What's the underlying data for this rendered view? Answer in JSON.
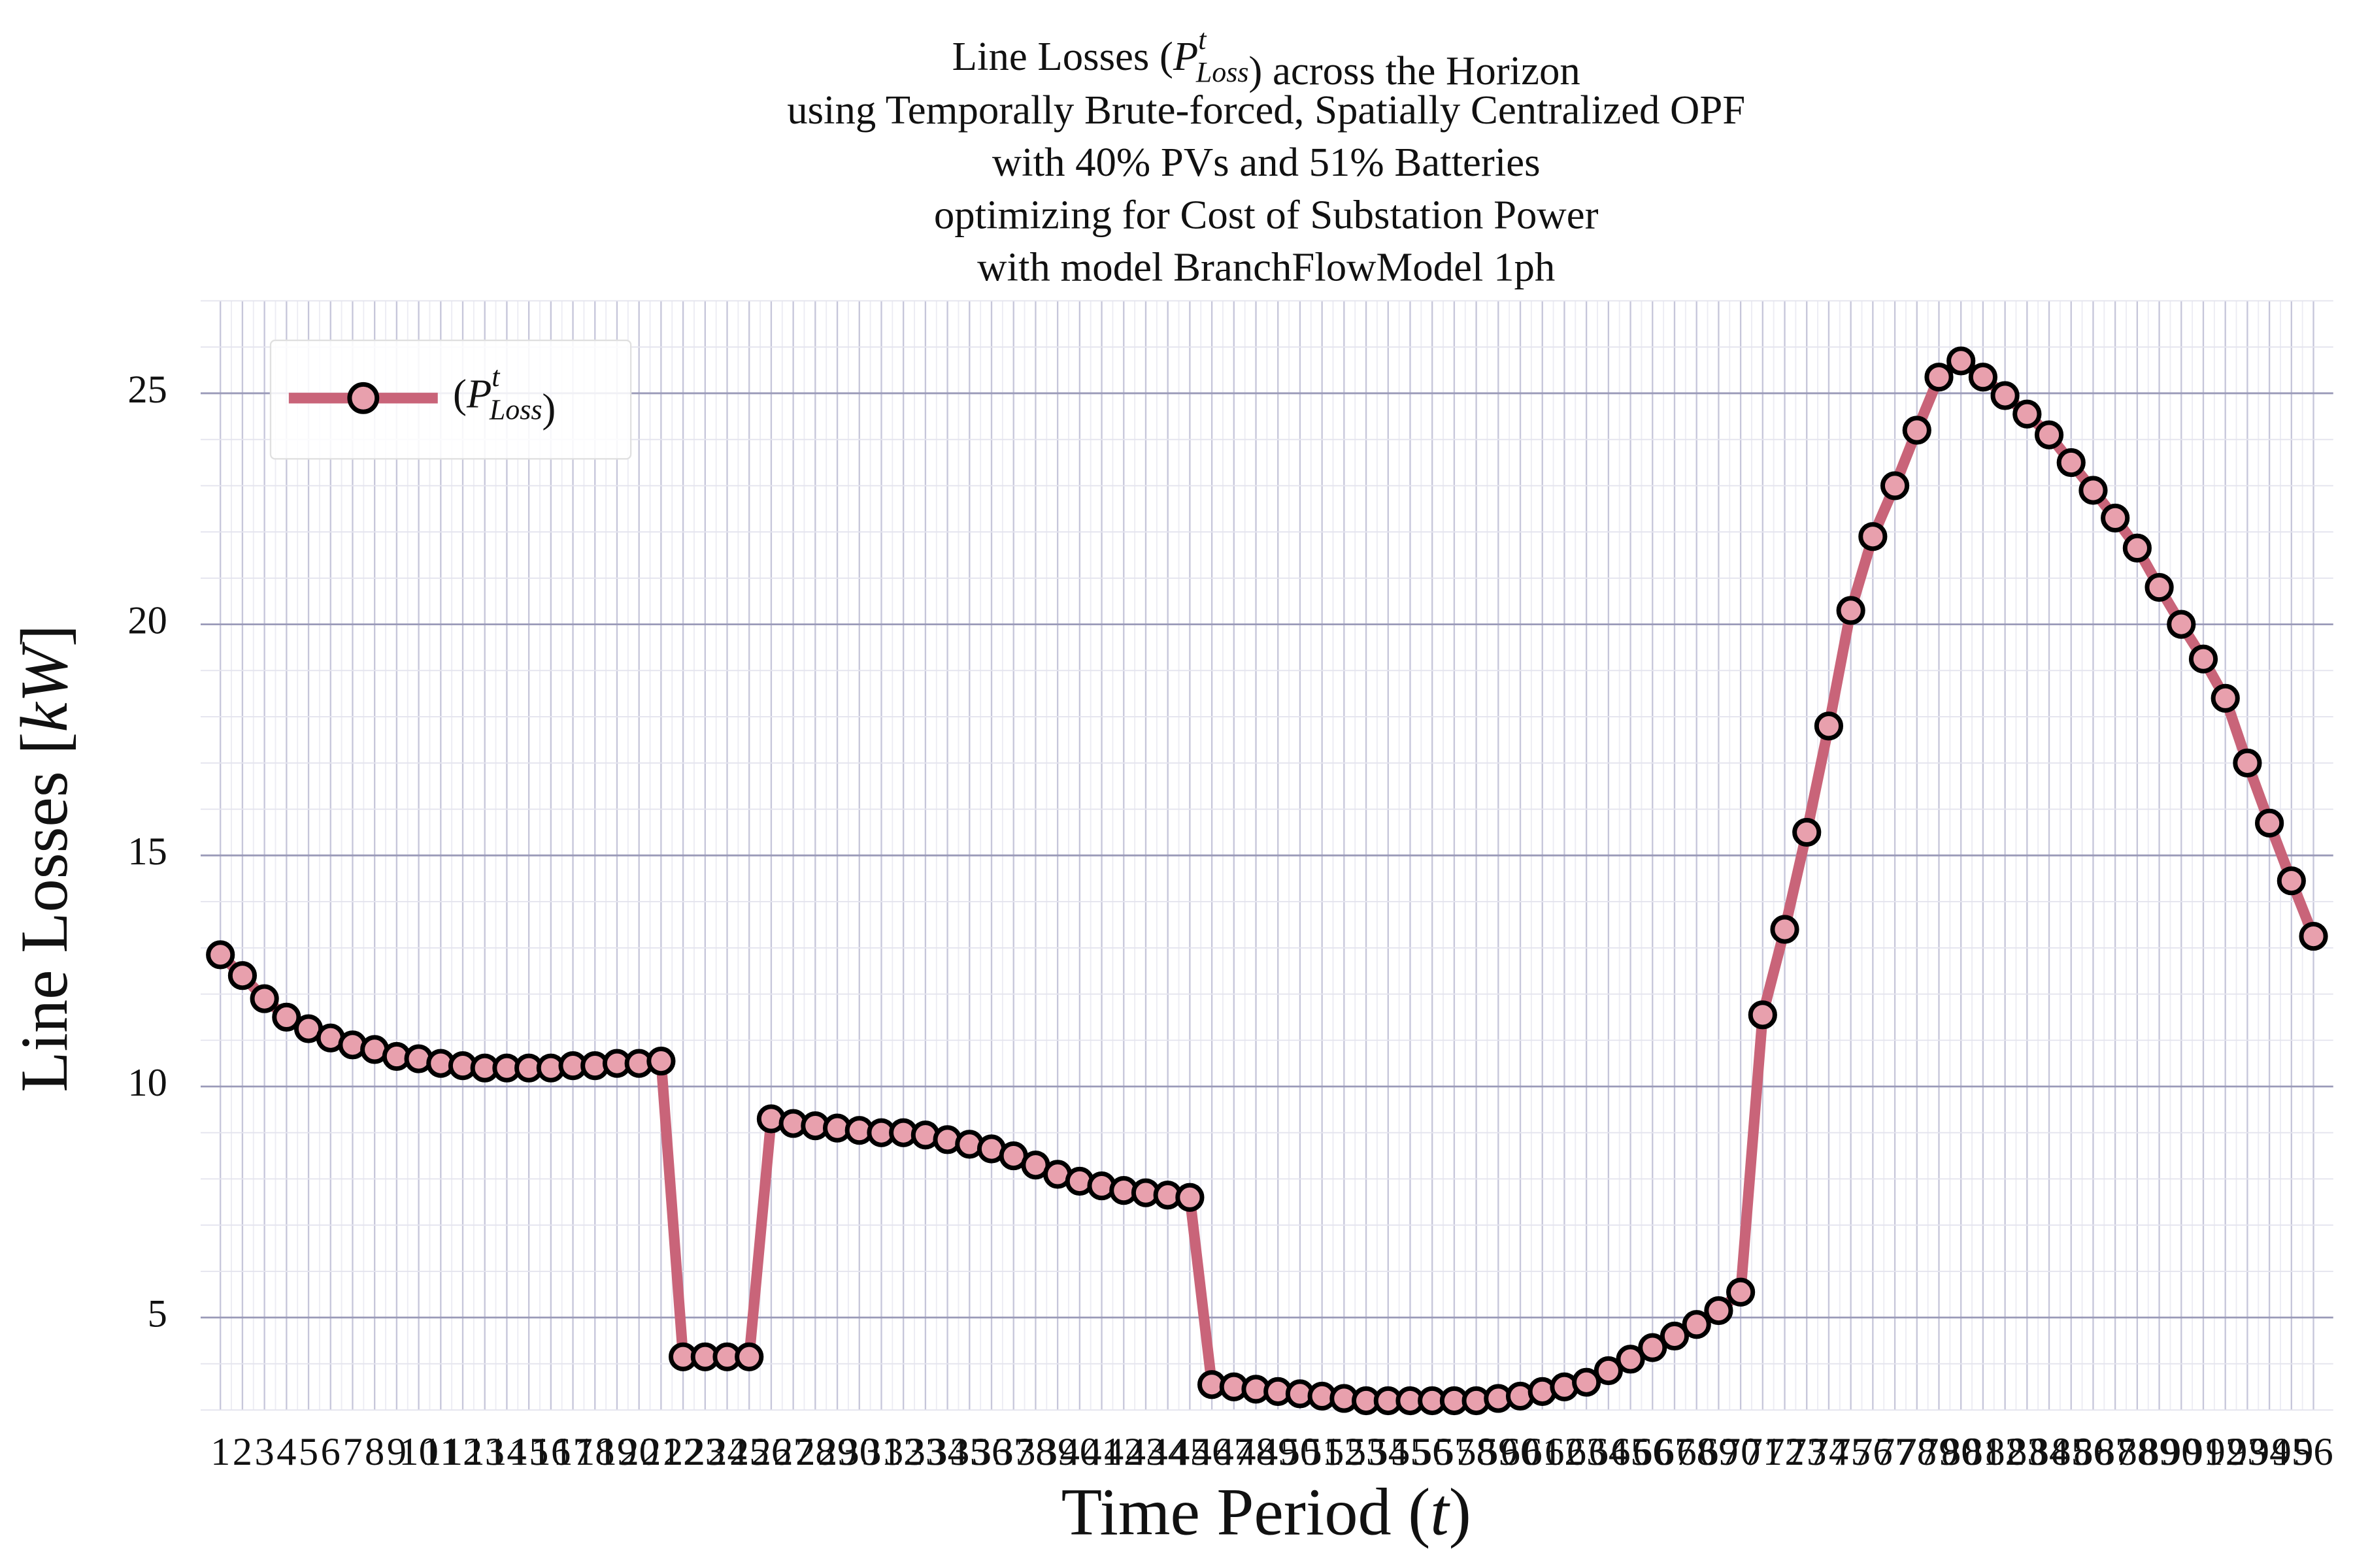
{
  "chart_data": {
    "type": "line",
    "title": {
      "first": {
        "pre": "Line Losses (",
        "post": ") across the Horizon"
      },
      "rest": [
        "using Temporally Brute-forced, Spatially Centralized OPF",
        "with 40% PVs and 51% Batteries",
        "optimizing for Cost of Substation Power",
        "with model BranchFlowModel 1ph"
      ]
    },
    "symbol": {
      "base": "P",
      "sup": "t",
      "sub": "Loss"
    },
    "legend_label": {
      "pre": "(",
      "post": ")"
    },
    "legend_position": "upper left",
    "xlabel": {
      "pre": "Time Period (",
      "var": "t",
      "post": ")"
    },
    "ylabel": {
      "pre": "Line Losses [",
      "var": "kW",
      "post": "]"
    },
    "categories": [
      "1",
      "2",
      "3",
      "4",
      "5",
      "6",
      "7",
      "8",
      "9",
      "10",
      "11",
      "12",
      "13",
      "14",
      "15",
      "16",
      "17",
      "18",
      "19",
      "20",
      "21",
      "22",
      "23",
      "24",
      "25",
      "26",
      "27",
      "28",
      "29",
      "30",
      "31",
      "32",
      "33",
      "34",
      "35",
      "36",
      "37",
      "38",
      "39",
      "40",
      "41",
      "42",
      "43",
      "44",
      "45",
      "46",
      "47",
      "48",
      "49",
      "50",
      "51",
      "52",
      "53",
      "54",
      "55",
      "56",
      "57",
      "58",
      "59",
      "60",
      "61",
      "62",
      "63",
      "64",
      "65",
      "66",
      "67",
      "68",
      "69",
      "70",
      "71",
      "72",
      "73",
      "74",
      "75",
      "76",
      "77",
      "78",
      "79",
      "80",
      "81",
      "82",
      "83",
      "84",
      "85",
      "86",
      "87",
      "88",
      "89",
      "90",
      "91",
      "92",
      "93",
      "94",
      "95",
      "96"
    ],
    "series": [
      {
        "color": "#c96479",
        "marker_color": "#e8a0ad",
        "values": [
          12.85,
          12.4,
          11.9,
          11.5,
          11.25,
          11.05,
          10.9,
          10.8,
          10.65,
          10.6,
          10.5,
          10.45,
          10.4,
          10.4,
          10.4,
          10.4,
          10.45,
          10.45,
          10.5,
          10.5,
          10.55,
          4.15,
          4.15,
          4.15,
          4.15,
          9.3,
          9.2,
          9.15,
          9.1,
          9.05,
          9.0,
          9.0,
          8.95,
          8.85,
          8.75,
          8.65,
          8.5,
          8.3,
          8.1,
          7.95,
          7.85,
          7.75,
          7.7,
          7.65,
          7.6,
          3.55,
          3.5,
          3.45,
          3.4,
          3.35,
          3.3,
          3.25,
          3.2,
          3.2,
          3.2,
          3.2,
          3.2,
          3.2,
          3.25,
          3.3,
          3.4,
          3.5,
          3.6,
          3.85,
          4.1,
          4.35,
          4.6,
          4.85,
          5.15,
          5.55,
          11.55,
          13.4,
          15.5,
          17.8,
          20.3,
          21.9,
          23.0,
          24.2,
          25.35,
          25.7,
          25.35,
          24.95,
          24.55,
          24.1,
          23.5,
          22.9,
          22.3,
          21.65,
          20.8,
          20.0,
          19.25,
          18.4,
          17.0,
          15.7,
          14.45,
          13.25
        ]
      }
    ],
    "ylim": [
      3,
      27
    ],
    "yticks": [
      5,
      10,
      15,
      20,
      25
    ],
    "yminor": [
      3,
      4,
      6,
      7,
      8,
      9,
      11,
      12,
      13,
      14,
      16,
      17,
      18,
      19,
      21,
      22,
      23,
      24,
      26,
      27
    ],
    "grid": true
  }
}
